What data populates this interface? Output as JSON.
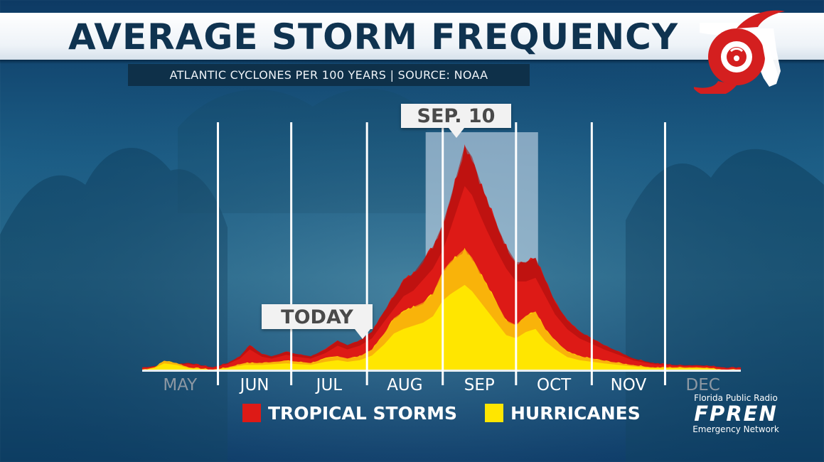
{
  "header": {
    "title": "AVERAGE STORM FREQUENCY",
    "subtitle": "ATLANTIC CYCLONES PER 100 YEARS | SOURCE: NOAA"
  },
  "callouts": {
    "today": "TODAY",
    "peak": "SEP. 10"
  },
  "legend": {
    "tropical_storms": "TROPICAL STORMS",
    "hurricanes": "HURRICANES"
  },
  "branding": {
    "line1": "Florida Public Radio",
    "line2": "FPREN",
    "line3": "Emergency Network"
  },
  "colors": {
    "tropical_storms": "#dd1a16",
    "hurricanes": "#ffe600",
    "highlight_band": "#c8d8e8",
    "logo_red": "#d41f1f"
  },
  "chart_data": {
    "type": "area",
    "title": "AVERAGE STORM FREQUENCY",
    "subtitle": "ATLANTIC CYCLONES PER 100 YEARS | SOURCE: NOAA",
    "x_axis": "day of year, May through December",
    "months": [
      "MAY",
      "JUN",
      "JUL",
      "AUG",
      "SEP",
      "OCT",
      "NOV",
      "DEC"
    ],
    "highlighted_months": [
      "MAY",
      "DEC"
    ],
    "month_start_days": [
      121,
      152,
      182,
      213,
      244,
      274,
      305,
      335
    ],
    "x_range": [
      121,
      366
    ],
    "y_range": [
      0,
      100
    ],
    "y_units": "relative frequency (no axis scale shown)",
    "peak_label": "SEP. 10",
    "peak_day": 253,
    "today_label": "TODAY",
    "today_day": 212,
    "highlight_range_days": [
      237,
      283
    ],
    "grid": false,
    "legend_position": "bottom-center",
    "series": [
      {
        "name": "TROPICAL STORMS",
        "color": "#dd1a16",
        "points": [
          [
            121,
            1
          ],
          [
            130,
            2
          ],
          [
            140,
            3
          ],
          [
            150,
            1
          ],
          [
            156,
            3
          ],
          [
            161,
            6
          ],
          [
            165,
            11
          ],
          [
            170,
            7
          ],
          [
            174,
            6
          ],
          [
            180,
            8
          ],
          [
            184,
            7
          ],
          [
            190,
            6
          ],
          [
            196,
            9
          ],
          [
            201,
            13
          ],
          [
            205,
            11
          ],
          [
            210,
            13
          ],
          [
            215,
            17
          ],
          [
            220,
            26
          ],
          [
            224,
            33
          ],
          [
            228,
            40
          ],
          [
            232,
            43
          ],
          [
            236,
            49
          ],
          [
            240,
            55
          ],
          [
            244,
            65
          ],
          [
            247,
            76
          ],
          [
            250,
            88
          ],
          [
            253,
            100
          ],
          [
            256,
            95
          ],
          [
            259,
            85
          ],
          [
            262,
            76
          ],
          [
            266,
            65
          ],
          [
            270,
            55
          ],
          [
            274,
            48
          ],
          [
            278,
            48
          ],
          [
            282,
            50
          ],
          [
            286,
            40
          ],
          [
            290,
            30
          ],
          [
            295,
            22
          ],
          [
            300,
            17
          ],
          [
            305,
            14
          ],
          [
            310,
            11
          ],
          [
            316,
            8
          ],
          [
            322,
            5
          ],
          [
            330,
            3
          ],
          [
            340,
            2
          ],
          [
            350,
            2
          ],
          [
            360,
            1
          ],
          [
            366,
            1
          ]
        ]
      },
      {
        "name": "HURRICANES",
        "color": "#ffe600",
        "points": [
          [
            121,
            0
          ],
          [
            126,
            1
          ],
          [
            130,
            4
          ],
          [
            135,
            3
          ],
          [
            140,
            1
          ],
          [
            150,
            0
          ],
          [
            156,
            1
          ],
          [
            163,
            3
          ],
          [
            170,
            3
          ],
          [
            180,
            4
          ],
          [
            190,
            3
          ],
          [
            196,
            5
          ],
          [
            201,
            6
          ],
          [
            205,
            5
          ],
          [
            210,
            6
          ],
          [
            215,
            9
          ],
          [
            220,
            16
          ],
          [
            224,
            23
          ],
          [
            228,
            26
          ],
          [
            232,
            28
          ],
          [
            236,
            30
          ],
          [
            240,
            34
          ],
          [
            244,
            44
          ],
          [
            247,
            48
          ],
          [
            250,
            51
          ],
          [
            253,
            54
          ],
          [
            256,
            50
          ],
          [
            259,
            44
          ],
          [
            262,
            38
          ],
          [
            266,
            30
          ],
          [
            270,
            22
          ],
          [
            274,
            20
          ],
          [
            278,
            24
          ],
          [
            282,
            26
          ],
          [
            286,
            18
          ],
          [
            290,
            13
          ],
          [
            295,
            8
          ],
          [
            300,
            6
          ],
          [
            305,
            5
          ],
          [
            310,
            4
          ],
          [
            316,
            3
          ],
          [
            322,
            2
          ],
          [
            330,
            1
          ],
          [
            340,
            1
          ],
          [
            350,
            1
          ],
          [
            360,
            0
          ],
          [
            366,
            0
          ]
        ]
      }
    ]
  }
}
